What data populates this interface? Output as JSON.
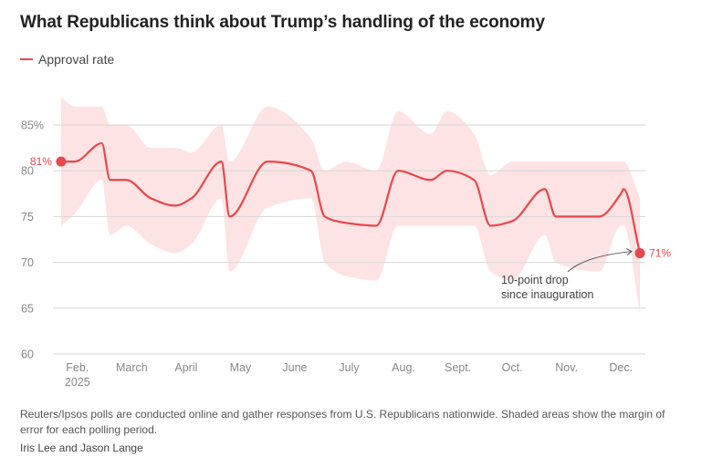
{
  "title": "What Republicans think about Trump’s handling of the economy",
  "legend": {
    "label": "Approval rate",
    "color": "#e8474c"
  },
  "colors": {
    "line": "#e8474c",
    "band": "#fde3e3",
    "grid": "#d6d6d6"
  },
  "chart_data": {
    "type": "line",
    "title": "What Republicans think about Trump’s handling of the economy",
    "xlabel": "",
    "ylabel": "",
    "ylim": [
      60,
      88
    ],
    "xlim": [
      1.55,
      12.45
    ],
    "y_ticks": [
      {
        "value": 85,
        "label": "85%"
      },
      {
        "value": 80,
        "label": "80"
      },
      {
        "value": 75,
        "label": "75"
      },
      {
        "value": 70,
        "label": "70"
      },
      {
        "value": 65,
        "label": "65"
      },
      {
        "value": 60,
        "label": "60"
      }
    ],
    "x_ticks": [
      {
        "x": 2.0,
        "label": "Feb.",
        "sub": "2025"
      },
      {
        "x": 3.0,
        "label": "March"
      },
      {
        "x": 4.0,
        "label": "April"
      },
      {
        "x": 5.0,
        "label": "May"
      },
      {
        "x": 6.0,
        "label": "June"
      },
      {
        "x": 7.0,
        "label": "July"
      },
      {
        "x": 8.0,
        "label": "Aug."
      },
      {
        "x": 9.0,
        "label": "Sept."
      },
      {
        "x": 10.0,
        "label": "Oct."
      },
      {
        "x": 11.0,
        "label": "Nov."
      },
      {
        "x": 12.0,
        "label": "Dec."
      }
    ],
    "series": [
      {
        "name": "Approval rate",
        "x": [
          1.7,
          1.95,
          2.45,
          2.6,
          2.9,
          3.35,
          3.8,
          4.1,
          4.65,
          4.8,
          5.5,
          6.3,
          6.55,
          6.95,
          7.5,
          7.9,
          8.5,
          8.8,
          9.3,
          9.6,
          10.0,
          10.6,
          10.8,
          11.6,
          12.0,
          12.05,
          12.35
        ],
        "y": [
          81,
          81,
          83,
          79,
          79,
          77,
          76.2,
          77,
          81,
          75,
          81,
          80,
          75,
          74.3,
          74,
          80,
          79,
          80,
          79,
          74,
          74.5,
          78,
          75,
          75,
          77.5,
          78,
          71
        ],
        "lower": [
          74,
          75.3,
          79,
          73,
          74,
          72,
          71,
          72,
          77,
          69,
          76,
          77,
          70,
          68.5,
          68,
          74,
          74,
          74,
          74,
          69,
          68,
          73,
          70,
          69,
          74,
          74,
          64.5
        ],
        "upper": [
          88,
          87,
          87,
          85,
          85,
          82.5,
          82.5,
          82,
          85,
          81,
          87,
          83.5,
          80,
          81,
          80,
          86.5,
          84,
          86.5,
          84,
          79.5,
          81,
          81,
          81,
          81,
          81,
          81,
          77
        ]
      }
    ],
    "start_label": "81%",
    "end_label": "71%",
    "annotation": {
      "line1": "10-point drop",
      "line2": "since inauguration"
    }
  },
  "footnote": "Reuters/Ipsos polls are conducted online and gather responses from U.S. Republicans nationwide. Shaded areas show the margin of error for each polling period.",
  "byline": "Iris Lee and Jason Lange"
}
